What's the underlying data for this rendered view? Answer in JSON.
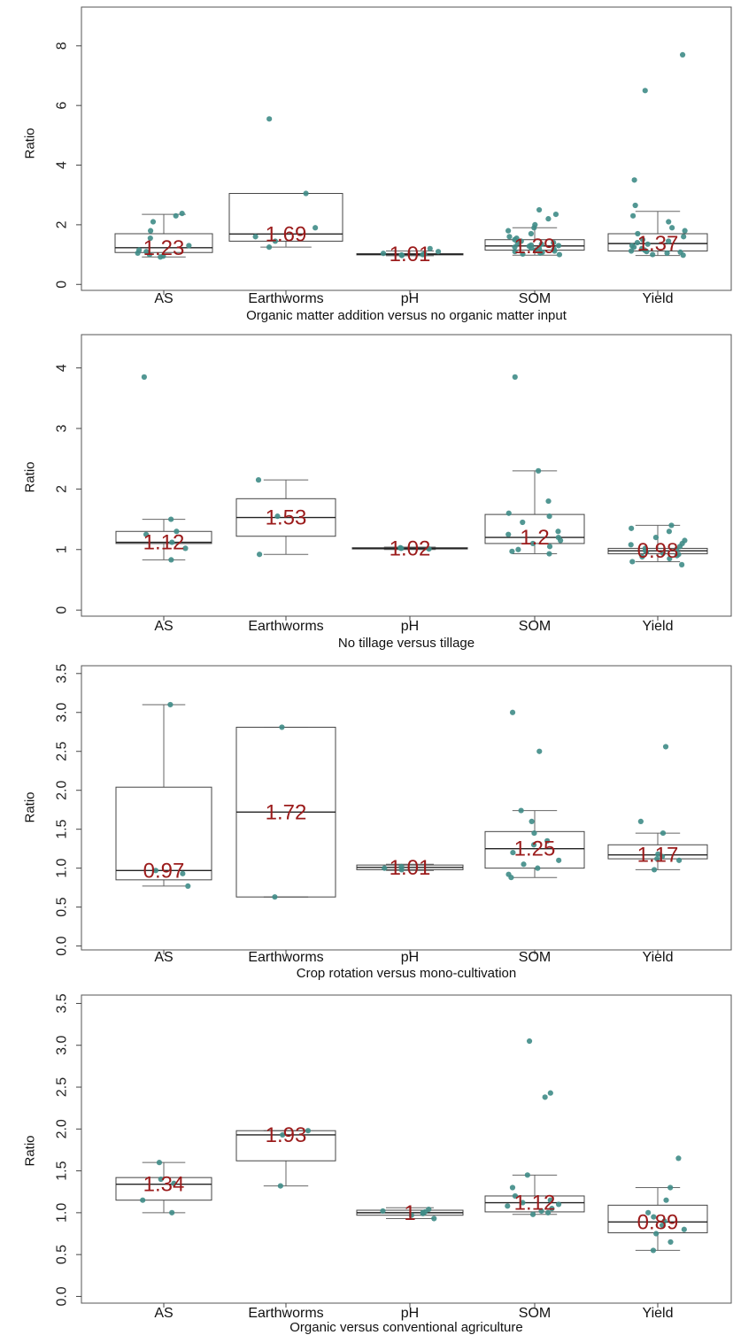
{
  "colors": {
    "points": "#3f8c87",
    "median_label": "#9b1b1b",
    "box": "#444444"
  },
  "chart_data": [
    {
      "type": "box",
      "xlabel": "Organic matter addition versus no organic matter input",
      "ylabel": "Ratio",
      "ylim": [
        -0.2,
        9.3
      ],
      "yticks": [
        0,
        2,
        4,
        6,
        8
      ],
      "ytick_labels": [
        "0",
        "2",
        "4",
        "6",
        "8"
      ],
      "grid": false,
      "categories": [
        "AS",
        "Earthworms",
        "pH",
        "SOM",
        "Yield"
      ],
      "boxes": [
        {
          "q1": 1.07,
          "median": 1.23,
          "q3": 1.7,
          "whisker_low": 0.92,
          "whisker_high": 2.35,
          "label": "1.23",
          "points": [
            0.92,
            0.95,
            1.0,
            1.05,
            1.1,
            1.15,
            1.3,
            1.55,
            1.8,
            2.1,
            2.3,
            2.38
          ]
        },
        {
          "q1": 1.45,
          "median": 1.69,
          "q3": 3.05,
          "whisker_low": 1.25,
          "whisker_high": 3.05,
          "label": "1.69",
          "points": [
            1.25,
            1.45,
            1.6,
            1.9,
            3.05,
            5.55
          ]
        },
        {
          "q1": 0.99,
          "median": 1.01,
          "q3": 1.03,
          "whisker_low": 0.96,
          "whisker_high": 1.12,
          "label": "1.01",
          "points": [
            0.97,
            0.99,
            1.0,
            1.01,
            1.02,
            1.04,
            1.1,
            1.2
          ]
        },
        {
          "q1": 1.15,
          "median": 1.29,
          "q3": 1.5,
          "whisker_low": 0.98,
          "whisker_high": 1.9,
          "label": "1.29",
          "points": [
            1.0,
            1.02,
            1.05,
            1.08,
            1.1,
            1.12,
            1.15,
            1.18,
            1.2,
            1.22,
            1.25,
            1.28,
            1.3,
            1.32,
            1.35,
            1.38,
            1.4,
            1.45,
            1.5,
            1.55,
            1.6,
            1.7,
            1.8,
            1.9,
            2.0,
            2.2,
            2.35,
            2.5
          ]
        },
        {
          "q1": 1.12,
          "median": 1.37,
          "q3": 1.7,
          "whisker_low": 0.97,
          "whisker_high": 2.45,
          "label": "1.37",
          "points": [
            0.98,
            1.0,
            1.05,
            1.08,
            1.1,
            1.12,
            1.15,
            1.2,
            1.25,
            1.3,
            1.35,
            1.4,
            1.45,
            1.5,
            1.6,
            1.7,
            1.8,
            1.9,
            2.1,
            2.3,
            2.65,
            3.5,
            6.5,
            7.7
          ]
        }
      ]
    },
    {
      "type": "box",
      "xlabel": "No tillage versus tillage",
      "ylabel": "Ratio",
      "ylim": [
        -0.1,
        4.55
      ],
      "yticks": [
        0,
        1,
        2,
        3,
        4
      ],
      "ytick_labels": [
        "0",
        "1",
        "2",
        "3",
        "4"
      ],
      "grid": false,
      "categories": [
        "AS",
        "Earthworms",
        "pH",
        "SOM",
        "Yield"
      ],
      "boxes": [
        {
          "q1": 1.1,
          "median": 1.12,
          "q3": 1.3,
          "whisker_low": 0.83,
          "whisker_high": 1.5,
          "label": "1.12",
          "points": [
            0.83,
            1.02,
            1.12,
            1.25,
            1.3,
            1.5,
            3.85
          ]
        },
        {
          "q1": 1.22,
          "median": 1.53,
          "q3": 1.84,
          "whisker_low": 0.92,
          "whisker_high": 2.15,
          "label": "1.53",
          "points": [
            0.92,
            1.55,
            2.15
          ]
        },
        {
          "q1": 1.01,
          "median": 1.02,
          "q3": 1.03,
          "whisker_low": 1.0,
          "whisker_high": 1.04,
          "label": "1.02",
          "points": [
            1.01,
            1.02,
            1.03
          ]
        },
        {
          "q1": 1.1,
          "median": 1.2,
          "q3": 1.58,
          "whisker_low": 0.93,
          "whisker_high": 2.3,
          "label": "1.2",
          "points": [
            0.93,
            0.97,
            1.0,
            1.05,
            1.1,
            1.15,
            1.2,
            1.25,
            1.3,
            1.45,
            1.55,
            1.6,
            1.8,
            2.3,
            3.85
          ]
        },
        {
          "q1": 0.93,
          "median": 0.98,
          "q3": 1.02,
          "whisker_low": 0.8,
          "whisker_high": 1.4,
          "label": "0.98",
          "points": [
            0.75,
            0.8,
            0.85,
            0.88,
            0.9,
            0.92,
            0.94,
            0.96,
            0.98,
            1.0,
            1.02,
            1.05,
            1.08,
            1.1,
            1.15,
            1.2,
            1.3,
            1.35,
            1.4
          ]
        }
      ]
    },
    {
      "type": "box",
      "xlabel": "Crop rotation versus mono-cultivation",
      "ylabel": "Ratio",
      "ylim": [
        -0.05,
        3.6
      ],
      "yticks": [
        0,
        0.5,
        1,
        1.5,
        2,
        2.5,
        3,
        3.5
      ],
      "ytick_labels": [
        "0.0",
        "0.5",
        "1.0",
        "1.5",
        "2.0",
        "2.5",
        "3.0",
        "3.5"
      ],
      "grid": false,
      "categories": [
        "AS",
        "Earthworms",
        "pH",
        "SOM",
        "Yield"
      ],
      "boxes": [
        {
          "q1": 0.85,
          "median": 0.97,
          "q3": 2.04,
          "whisker_low": 0.77,
          "whisker_high": 3.1,
          "label": "0.97",
          "points": [
            0.77,
            0.93,
            0.97,
            3.1
          ]
        },
        {
          "q1": 0.63,
          "median": 1.72,
          "q3": 2.81,
          "whisker_low": 0.63,
          "whisker_high": 2.81,
          "label": "1.72",
          "points": [
            0.63,
            2.81
          ]
        },
        {
          "q1": 0.98,
          "median": 1.01,
          "q3": 1.04,
          "whisker_low": 0.97,
          "whisker_high": 1.05,
          "label": "1.01",
          "points": [
            0.98,
            1.0,
            1.02
          ]
        },
        {
          "q1": 1.0,
          "median": 1.25,
          "q3": 1.47,
          "whisker_low": 0.88,
          "whisker_high": 1.74,
          "label": "1.25",
          "points": [
            0.88,
            0.92,
            1.0,
            1.05,
            1.1,
            1.2,
            1.3,
            1.35,
            1.45,
            1.6,
            1.74,
            2.5,
            3.0
          ]
        },
        {
          "q1": 1.12,
          "median": 1.17,
          "q3": 1.3,
          "whisker_low": 0.98,
          "whisker_high": 1.45,
          "label": "1.17",
          "points": [
            0.98,
            1.1,
            1.12,
            1.15,
            1.18,
            1.45,
            1.6,
            2.56
          ]
        }
      ]
    },
    {
      "type": "box",
      "xlabel": "Organic versus conventional agriculture",
      "ylabel": "Ratio",
      "ylim": [
        -0.08,
        3.6
      ],
      "yticks": [
        0,
        0.5,
        1,
        1.5,
        2,
        2.5,
        3,
        3.5
      ],
      "ytick_labels": [
        "0.0",
        "0.5",
        "1.0",
        "1.5",
        "2.0",
        "2.5",
        "3.0",
        "3.5"
      ],
      "grid": false,
      "categories": [
        "AS",
        "Earthworms",
        "pH",
        "SOM",
        "Yield"
      ],
      "boxes": [
        {
          "q1": 1.15,
          "median": 1.34,
          "q3": 1.42,
          "whisker_low": 1.0,
          "whisker_high": 1.6,
          "label": "1.34",
          "points": [
            1.0,
            1.15,
            1.35,
            1.4,
            1.6
          ]
        },
        {
          "q1": 1.62,
          "median": 1.93,
          "q3": 1.98,
          "whisker_low": 1.32,
          "whisker_high": 1.98,
          "label": "1.93",
          "points": [
            1.32,
            1.93,
            1.98
          ]
        },
        {
          "q1": 0.97,
          "median": 1.0,
          "q3": 1.03,
          "whisker_low": 0.93,
          "whisker_high": 1.06,
          "label": "1",
          "points": [
            0.93,
            0.97,
            0.99,
            1.0,
            1.01,
            1.02,
            1.04
          ]
        },
        {
          "q1": 1.01,
          "median": 1.12,
          "q3": 1.2,
          "whisker_low": 0.98,
          "whisker_high": 1.45,
          "label": "1.12",
          "points": [
            0.98,
            1.0,
            1.02,
            1.05,
            1.08,
            1.1,
            1.12,
            1.15,
            1.2,
            1.3,
            1.45,
            2.38,
            2.43,
            3.05
          ]
        },
        {
          "q1": 0.76,
          "median": 0.89,
          "q3": 1.09,
          "whisker_low": 0.55,
          "whisker_high": 1.3,
          "label": "0.89",
          "points": [
            0.55,
            0.65,
            0.75,
            0.8,
            0.85,
            0.9,
            0.95,
            1.0,
            1.15,
            1.3,
            1.65
          ]
        }
      ]
    }
  ]
}
